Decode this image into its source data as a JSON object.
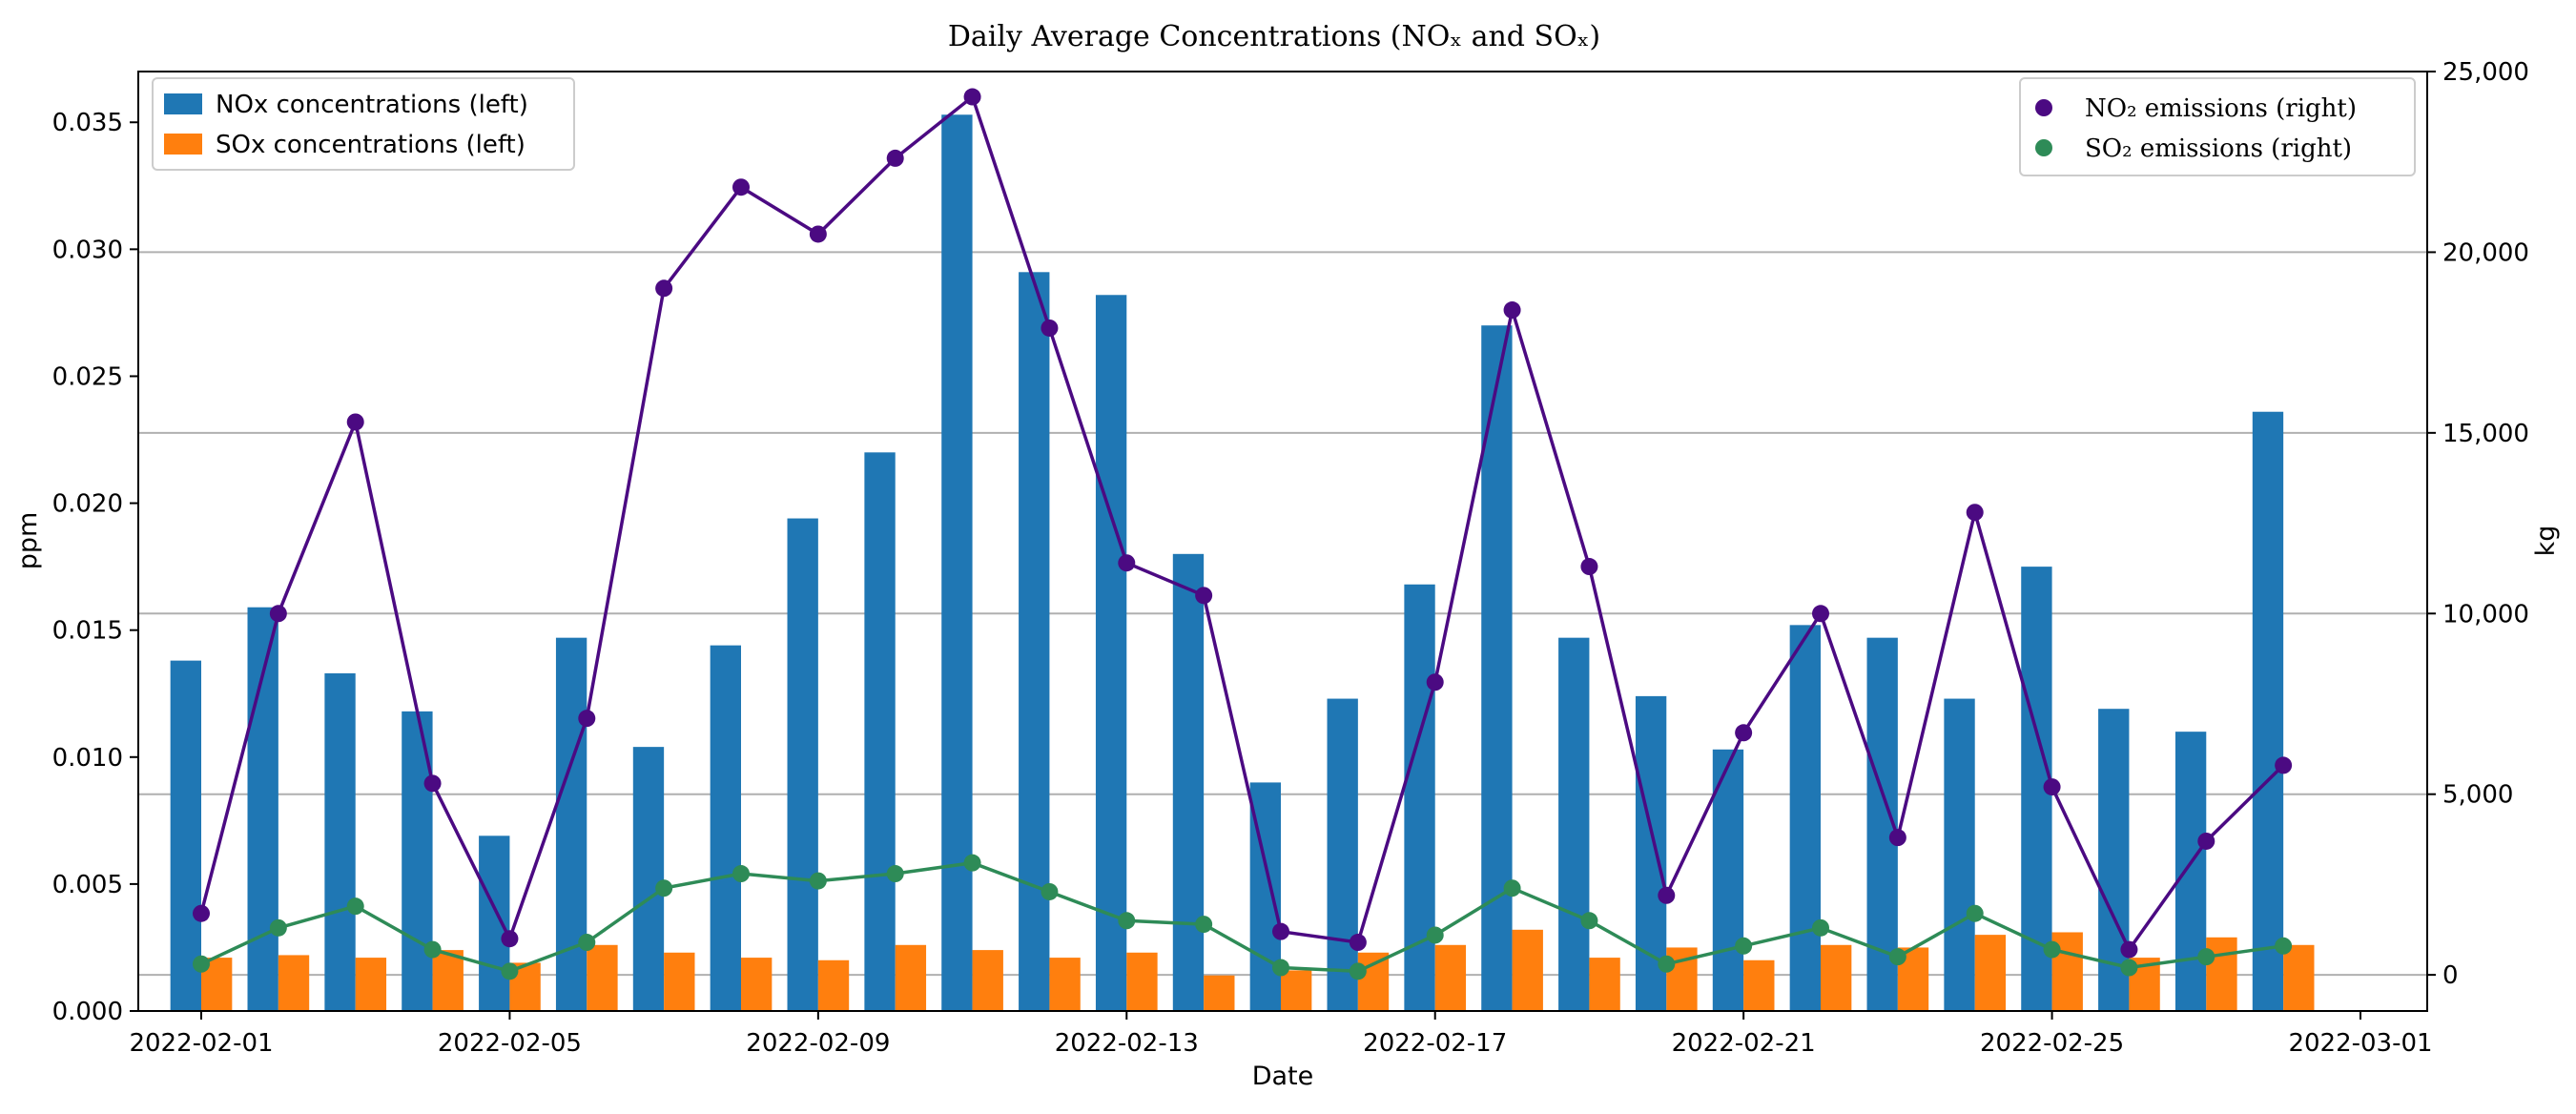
{
  "chart_data": {
    "type": "bar",
    "title": "Daily Average Concentrations (NOₓ and SOₓ)",
    "xlabel": "Date",
    "ylabel": "ppm",
    "y2label": "kg",
    "ylim": [
      0,
      0.037
    ],
    "y2lim": [
      -1000,
      25000
    ],
    "grid": "horizontal, right axis",
    "x_start_day": 0,
    "x_end_day": 28,
    "x_ticks": [
      {
        "day": 0,
        "label": "2022-02-01"
      },
      {
        "day": 4,
        "label": "2022-02-05"
      },
      {
        "day": 8,
        "label": "2022-02-09"
      },
      {
        "day": 12,
        "label": "2022-02-13"
      },
      {
        "day": 16,
        "label": "2022-02-17"
      },
      {
        "day": 20,
        "label": "2022-02-21"
      },
      {
        "day": 24,
        "label": "2022-02-25"
      },
      {
        "day": 28,
        "label": "2022-03-01"
      }
    ],
    "y_ticks": [
      {
        "value": 0,
        "label": "0.000"
      },
      {
        "value": 0.005,
        "label": "0.005"
      },
      {
        "value": 0.01,
        "label": "0.010"
      },
      {
        "value": 0.015,
        "label": "0.015"
      },
      {
        "value": 0.02,
        "label": "0.020"
      },
      {
        "value": 0.025,
        "label": "0.025"
      },
      {
        "value": 0.03,
        "label": "0.030"
      },
      {
        "value": 0.035,
        "label": "0.035"
      }
    ],
    "y2_ticks": [
      {
        "value": 0,
        "label": "0"
      },
      {
        "value": 5000,
        "label": "5,000"
      },
      {
        "value": 10000,
        "label": "10,000"
      },
      {
        "value": 15000,
        "label": "15,000"
      },
      {
        "value": 20000,
        "label": "20,000"
      },
      {
        "value": 25000,
        "label": "25,000"
      }
    ],
    "days": [
      0,
      1,
      2,
      3,
      4,
      5,
      6,
      7,
      8,
      9,
      10,
      11,
      12,
      13,
      14,
      15,
      16,
      17,
      18,
      19,
      20,
      21,
      22,
      23,
      24,
      25,
      26,
      27
    ],
    "series": [
      {
        "name": "NOx concentrations (left)",
        "kind": "bar",
        "axis": "left",
        "offset": -0.2,
        "color": "#1f77b4",
        "values": [
          0.0138,
          0.0159,
          0.0133,
          0.0118,
          0.0069,
          0.0147,
          0.0104,
          0.0144,
          0.0194,
          0.022,
          0.0353,
          0.0291,
          0.0282,
          0.018,
          0.009,
          0.0123,
          0.0168,
          0.027,
          0.0147,
          0.0124,
          0.0103,
          0.0152,
          0.0147,
          0.0123,
          0.0175,
          0.0119,
          0.011,
          0.0236
        ]
      },
      {
        "name": "SOx concentrations (left)",
        "kind": "bar",
        "axis": "left",
        "offset": 0.2,
        "color": "#ff7f0e",
        "values": [
          0.0021,
          0.0022,
          0.0021,
          0.0024,
          0.0019,
          0.0026,
          0.0023,
          0.0021,
          0.002,
          0.0026,
          0.0024,
          0.0021,
          0.0023,
          0.0014,
          0.0016,
          0.0023,
          0.0026,
          0.0032,
          0.0021,
          0.0025,
          0.002,
          0.0026,
          0.0025,
          0.003,
          0.0031,
          0.0021,
          0.0029,
          0.0026
        ]
      },
      {
        "name": "NO₂ emissions (right)",
        "kind": "line",
        "axis": "right",
        "color": "#4b0a82",
        "values": [
          1700,
          10000,
          15300,
          5300,
          1000,
          7100,
          19000,
          21800,
          20500,
          22600,
          24300,
          17900,
          11400,
          10500,
          1200,
          900,
          8100,
          18400,
          11300,
          2200,
          6700,
          10000,
          3800,
          12800,
          5200,
          700,
          3700,
          5800
        ]
      },
      {
        "name": "SO₂ emissions (right)",
        "kind": "line",
        "axis": "right",
        "color": "#2e8b57",
        "values": [
          300,
          1300,
          1900,
          700,
          100,
          900,
          2400,
          2800,
          2600,
          2800,
          3100,
          2300,
          1500,
          1400,
          200,
          100,
          1100,
          2400,
          1500,
          300,
          800,
          1300,
          500,
          1700,
          700,
          200,
          500,
          800
        ]
      }
    ],
    "legend_left": [
      "NOx concentrations (left)",
      "SOx concentrations (left)"
    ],
    "legend_right": [
      "NO₂ emissions (right)",
      "SO₂ emissions (right)"
    ]
  }
}
